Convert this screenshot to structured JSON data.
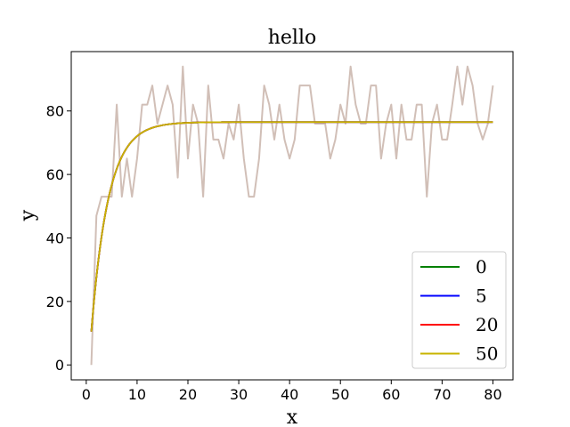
{
  "chart_data": {
    "type": "line",
    "title": "hello",
    "xlabel": "x",
    "ylabel": "y",
    "xlim": [
      -2.95,
      83.95
    ],
    "ylim": [
      -4.7,
      98.7
    ],
    "xticks": [
      0,
      10,
      20,
      30,
      40,
      50,
      60,
      70,
      80
    ],
    "yticks": [
      0,
      20,
      40,
      60,
      80
    ],
    "grid": false,
    "legend_position": "lower-right",
    "raw": {
      "color": "#d1bfb7",
      "x": [
        1,
        2,
        3,
        4,
        5,
        6,
        7,
        8,
        9,
        10,
        11,
        12,
        13,
        14,
        15,
        16,
        17,
        18,
        19,
        20,
        21,
        22,
        23,
        24,
        25,
        26,
        27,
        28,
        29,
        30,
        31,
        32,
        33,
        34,
        35,
        36,
        37,
        38,
        39,
        40,
        41,
        42,
        43,
        44,
        45,
        46,
        47,
        48,
        49,
        50,
        51,
        52,
        53,
        54,
        55,
        56,
        57,
        58,
        59,
        60,
        61,
        62,
        63,
        64,
        65,
        66,
        67,
        68,
        69,
        70,
        71,
        72,
        73,
        74,
        75,
        76,
        77,
        78,
        79,
        80
      ],
      "values": [
        0,
        47,
        53,
        53,
        53,
        82,
        53,
        65,
        53,
        65,
        82,
        82,
        88,
        76,
        82,
        88,
        82,
        59,
        94,
        65,
        82,
        76,
        53,
        88,
        71,
        71,
        65,
        76,
        71,
        82,
        65,
        53,
        53,
        65,
        88,
        82,
        71,
        82,
        71,
        65,
        71,
        88,
        88,
        88,
        76,
        76,
        76,
        65,
        71,
        82,
        76,
        94,
        82,
        76,
        76,
        88,
        88,
        65,
        76,
        82,
        65,
        82,
        71,
        71,
        82,
        82,
        53,
        76,
        82,
        71,
        71,
        82,
        94,
        82,
        94,
        88,
        76,
        71,
        76,
        88
      ]
    },
    "series": [
      {
        "name": "0",
        "color": "#008000",
        "start": 10.5,
        "end": 76.5,
        "rate": 0.3
      },
      {
        "name": "5",
        "color": "#0000ff",
        "start": 10.5,
        "end": 76.5,
        "rate": 0.3
      },
      {
        "name": "20",
        "color": "#ff0000",
        "start": 10.5,
        "end": 76.5,
        "rate": 0.3
      },
      {
        "name": "50",
        "color": "#c8b400",
        "start": 10.5,
        "end": 76.5,
        "rate": 0.3
      }
    ]
  }
}
